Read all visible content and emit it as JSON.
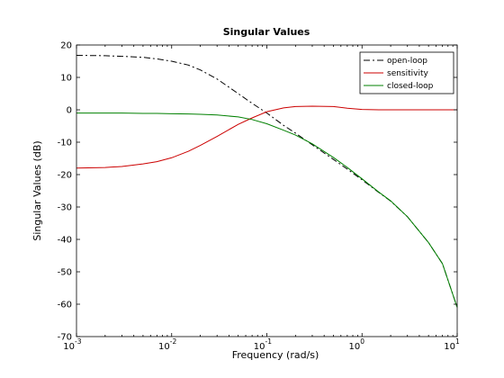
{
  "chart_data": {
    "type": "line",
    "title": "Singular Values",
    "xlabel": "Frequency (rad/s)",
    "ylabel": "Singular Values (dB)",
    "xscale": "log",
    "xlim": [
      0.001,
      10
    ],
    "ylim": [
      -70,
      20
    ],
    "x_ticks": [
      0.001,
      0.01,
      0.1,
      1,
      10
    ],
    "x_tick_labels": [
      {
        "base": "10",
        "exp": "-3"
      },
      {
        "base": "10",
        "exp": "-2"
      },
      {
        "base": "10",
        "exp": "-1"
      },
      {
        "base": "10",
        "exp": "0"
      },
      {
        "base": "10",
        "exp": "1"
      }
    ],
    "y_ticks": [
      20,
      10,
      0,
      -10,
      -20,
      -30,
      -40,
      -50,
      -60,
      -70
    ],
    "y_tick_labels": [
      "20",
      "10",
      "0",
      "-10",
      "-20",
      "-30",
      "-40",
      "-50",
      "-60",
      "-70"
    ],
    "grid": false,
    "legend_position": "top-right",
    "series": [
      {
        "name": "open-loop",
        "color": "#000000",
        "style": "dash-dot",
        "x": [
          0.001,
          0.002,
          0.003,
          0.005,
          0.007,
          0.01,
          0.015,
          0.02,
          0.03,
          0.05,
          0.07,
          0.1,
          0.15,
          0.2,
          0.3,
          0.5,
          0.7,
          1,
          1.5,
          2,
          3,
          5,
          7,
          10
        ],
        "y": [
          16.8,
          16.7,
          16.5,
          16.2,
          15.7,
          15.0,
          13.8,
          12.3,
          9.5,
          5.0,
          2.0,
          -1.0,
          -4.8,
          -7.2,
          -10.8,
          -15.3,
          -18.3,
          -21.6,
          -25.5,
          -28.2,
          -33.0,
          -41.0,
          -47.5,
          -61.0
        ]
      },
      {
        "name": "sensitivity",
        "color": "#cc0000",
        "style": "solid",
        "x": [
          0.001,
          0.002,
          0.003,
          0.005,
          0.007,
          0.01,
          0.015,
          0.02,
          0.03,
          0.05,
          0.07,
          0.1,
          0.15,
          0.2,
          0.3,
          0.5,
          0.7,
          1,
          1.5,
          2,
          3,
          5,
          7,
          10
        ],
        "y": [
          -18.0,
          -17.8,
          -17.5,
          -16.7,
          -16.0,
          -14.8,
          -12.8,
          -11.0,
          -8.2,
          -4.5,
          -2.5,
          -0.6,
          0.6,
          1.0,
          1.1,
          1.0,
          0.5,
          0.1,
          0.0,
          0.0,
          0.0,
          0.0,
          0.0,
          0.0
        ]
      },
      {
        "name": "closed-loop",
        "color": "#008000",
        "style": "solid",
        "x": [
          0.001,
          0.002,
          0.003,
          0.005,
          0.007,
          0.01,
          0.015,
          0.02,
          0.03,
          0.05,
          0.07,
          0.1,
          0.15,
          0.2,
          0.3,
          0.5,
          0.7,
          1,
          1.5,
          2,
          3,
          5,
          7,
          10
        ],
        "y": [
          -1.0,
          -1.0,
          -1.0,
          -1.1,
          -1.1,
          -1.2,
          -1.3,
          -1.4,
          -1.6,
          -2.2,
          -3.0,
          -4.3,
          -6.3,
          -7.8,
          -10.5,
          -14.7,
          -17.8,
          -21.3,
          -25.4,
          -28.1,
          -33.0,
          -41.0,
          -47.5,
          -61.0
        ]
      }
    ]
  }
}
